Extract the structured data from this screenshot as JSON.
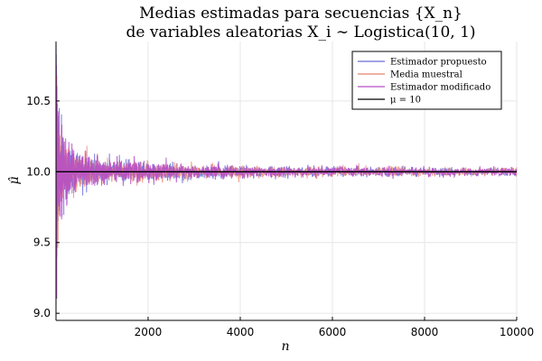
{
  "chart_data": {
    "type": "line",
    "title_line1": "Medias estimadas para secuencias {X_n}",
    "title_line2": "de variables aleatorias X_i ∼ Logistica(10, 1)",
    "xlabel": "n",
    "ylabel": "μ̂",
    "xlim": [
      1,
      10000
    ],
    "ylim": [
      8.95,
      10.92
    ],
    "x_ticks": [
      2000,
      4000,
      6000,
      8000,
      10000
    ],
    "x_tick_labels": [
      "2000",
      "4000",
      "6000",
      "8000",
      "10000"
    ],
    "y_ticks": [
      9.0,
      9.5,
      10.0,
      10.5
    ],
    "y_tick_labels": [
      "9.0",
      "9.5",
      "10.0",
      "10.5"
    ],
    "grid": true,
    "legend_position": "top-right",
    "true_mean": 10,
    "series": [
      {
        "name": "Estimador propuesto",
        "color": "#6a6ad8",
        "description_points": {
          "n": [
            1,
            10,
            50,
            100,
            500,
            1000,
            5000,
            10000
          ],
          "y": [
            9.2,
            10.55,
            9.9,
            10.15,
            9.95,
            10.02,
            10.0,
            10.0
          ]
        }
      },
      {
        "name": "Media muestral",
        "color": "#e8826f",
        "description_points": {
          "n": [
            1,
            10,
            50,
            100,
            500,
            1000,
            5000,
            10000
          ],
          "y": [
            9.05,
            10.85,
            9.8,
            10.2,
            10.05,
            9.98,
            10.01,
            10.0
          ]
        }
      },
      {
        "name": "Estimador modificado",
        "color": "#b84fc4",
        "description_points": {
          "n": [
            1,
            10,
            50,
            100,
            500,
            1000,
            5000,
            10000
          ],
          "y": [
            9.15,
            10.6,
            10.1,
            9.85,
            10.03,
            10.01,
            9.99,
            10.0
          ]
        }
      },
      {
        "name": "μ = 10",
        "color": "#000000",
        "constant": 10
      }
    ]
  }
}
